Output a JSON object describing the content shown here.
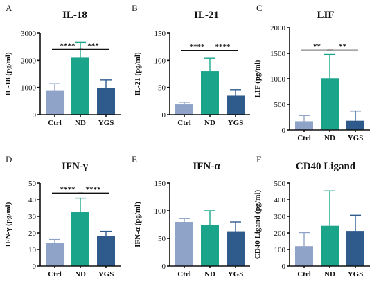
{
  "colors": {
    "Ctrl": "#8fa3c8",
    "ND": "#1aa58b",
    "YGS": "#2f5a8c"
  },
  "chart_data": [
    {
      "type": "bar",
      "panel": "A",
      "title": "IL-18",
      "ylabel": "IL-18 (pg/ml)",
      "categories": [
        "Ctrl",
        "ND",
        "YGS"
      ],
      "values": [
        900,
        2100,
        975
      ],
      "errors": [
        240,
        560,
        300
      ],
      "ylim": [
        0,
        3000
      ],
      "yticks": [
        0,
        1000,
        2000,
        3000
      ],
      "significance": [
        {
          "from": 0,
          "to": 1,
          "y": 2400,
          "label": "****"
        },
        {
          "from": 1,
          "to": 2,
          "y": 2400,
          "label": "***"
        }
      ]
    },
    {
      "type": "bar",
      "panel": "B",
      "title": "IL-21",
      "ylabel": "IL-21 (pg/ml)",
      "categories": [
        "Ctrl",
        "ND",
        "YGS"
      ],
      "values": [
        19,
        80,
        35
      ],
      "errors": [
        4,
        24,
        11
      ],
      "ylim": [
        0,
        150
      ],
      "yticks": [
        0,
        50,
        100,
        150
      ],
      "significance": [
        {
          "from": 0,
          "to": 1,
          "y": 118,
          "label": "****"
        },
        {
          "from": 1,
          "to": 2,
          "y": 118,
          "label": "****"
        }
      ]
    },
    {
      "type": "bar",
      "panel": "C",
      "title": "LIF",
      "ylabel": "LIF (pg/ml)",
      "categories": [
        "Ctrl",
        "ND",
        "YGS"
      ],
      "values": [
        170,
        1010,
        180
      ],
      "errors": [
        110,
        470,
        190
      ],
      "ylim": [
        0,
        2000
      ],
      "yticks": [
        0,
        500,
        1000,
        1500,
        2000
      ],
      "significance": [
        {
          "from": 0,
          "to": 1,
          "y": 1560,
          "label": "**"
        },
        {
          "from": 1,
          "to": 2,
          "y": 1560,
          "label": "**"
        }
      ]
    },
    {
      "type": "bar",
      "panel": "D",
      "title": "IFN-γ",
      "ylabel": "IFN-γ (pg/ml)",
      "categories": [
        "Ctrl",
        "ND",
        "YGS"
      ],
      "values": [
        14,
        32.5,
        18
      ],
      "errors": [
        2,
        8.5,
        3
      ],
      "ylim": [
        0,
        50
      ],
      "yticks": [
        0,
        10,
        20,
        30,
        40,
        50
      ],
      "significance": [
        {
          "from": 0,
          "to": 1,
          "y": 44,
          "label": "****"
        },
        {
          "from": 1,
          "to": 2,
          "y": 44,
          "label": "****"
        }
      ]
    },
    {
      "type": "bar",
      "panel": "E",
      "title": "IFN-α",
      "ylabel": "IFN-α (pg/ml)",
      "categories": [
        "Ctrl",
        "ND",
        "YGS"
      ],
      "values": [
        80,
        75,
        63
      ],
      "errors": [
        6,
        25,
        17
      ],
      "ylim": [
        0,
        150
      ],
      "yticks": [
        0,
        50,
        100,
        150
      ],
      "significance": []
    },
    {
      "type": "bar",
      "panel": "F",
      "title": "CD40 Ligand",
      "ylabel": "CD40 Ligand (pg/ml)",
      "categories": [
        "Ctrl",
        "ND",
        "YGS"
      ],
      "values": [
        120,
        243,
        212
      ],
      "errors": [
        82,
        210,
        95
      ],
      "ylim": [
        0,
        500
      ],
      "yticks": [
        0,
        100,
        200,
        300,
        400,
        500
      ],
      "significance": []
    }
  ]
}
